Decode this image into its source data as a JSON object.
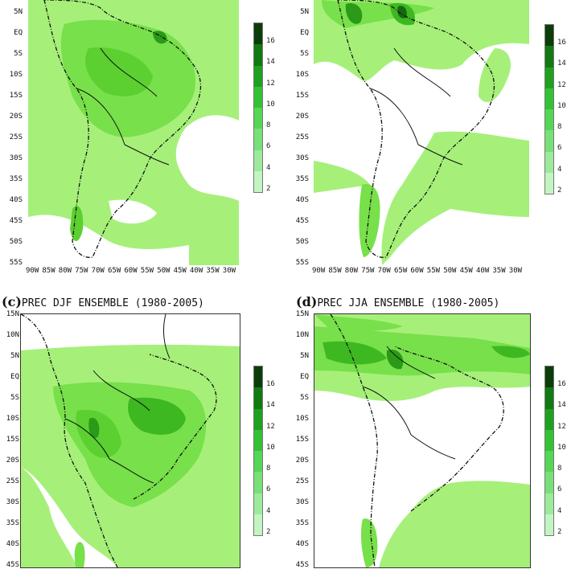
{
  "panels": [
    {
      "id": "a",
      "letter": "",
      "title_text": ""
    },
    {
      "id": "b",
      "letter": "",
      "title_text": ""
    },
    {
      "id": "c",
      "letter": "(c)",
      "title_text": "PREC DJF ENSEMBLE (1980-2005)"
    },
    {
      "id": "d",
      "letter": "(d)",
      "title_text": "PREC JJA ENSEMBLE (1980-2005)"
    }
  ],
  "lat_labels_top": [
    "5N",
    "EQ",
    "5S",
    "10S",
    "15S",
    "20S",
    "25S",
    "30S",
    "35S",
    "40S",
    "45S",
    "50S",
    "55S"
  ],
  "lat_labels_bottom": [
    "15N",
    "10N",
    "5N",
    "EQ",
    "5S",
    "10S",
    "15S",
    "20S",
    "25S",
    "30S",
    "35S",
    "40S",
    "45S"
  ],
  "lon_labels": [
    "90W",
    "85W",
    "80W",
    "75W",
    "70W",
    "65W",
    "60W",
    "55W",
    "50W",
    "45W",
    "40W",
    "35W",
    "30W"
  ],
  "colorbar_labels": [
    "16",
    "14",
    "12",
    "10",
    "8",
    "6",
    "4",
    "2"
  ],
  "colorbar_colors": [
    "#0a3d0a",
    "#127a12",
    "#1fa11f",
    "#33c233",
    "#55d655",
    "#78e078",
    "#9beb9b",
    "#c2f5c2"
  ],
  "fill_colors": {
    "level_2": "#a6f07a",
    "level_4": "#78e04a",
    "level_6": "#5cd030",
    "level_8": "#3eb820",
    "level_10": "#2a9a18",
    "level_14": "#156810"
  },
  "coastline_color": "#111111"
}
